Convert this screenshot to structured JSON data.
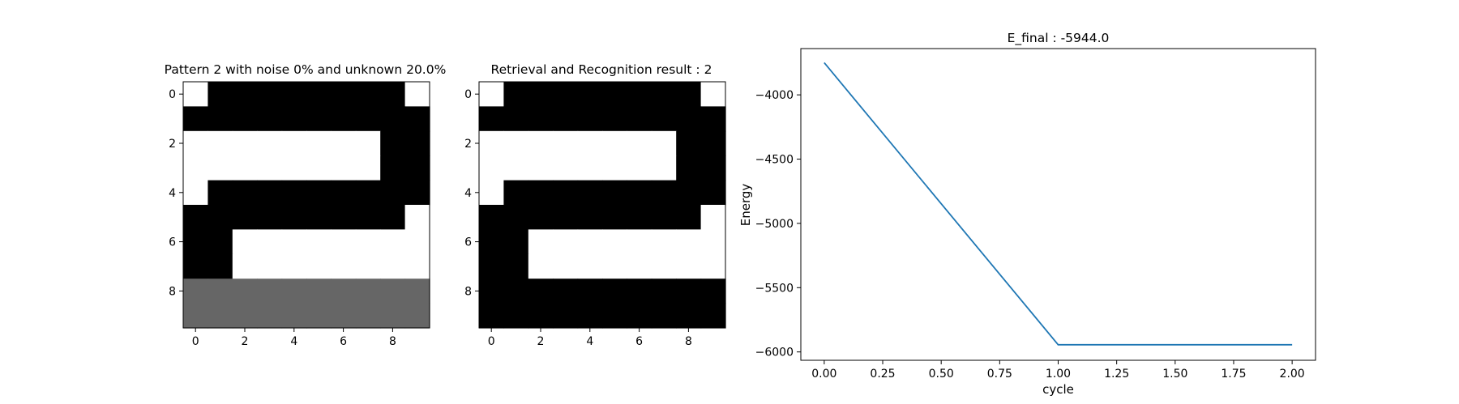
{
  "chart_data": [
    {
      "type": "heatmap",
      "title": "Pattern 2 with noise 0% and unknown 20.0%",
      "xlabel": "",
      "ylabel": "",
      "x_ticks": [
        0,
        2,
        4,
        6,
        8
      ],
      "y_ticks": [
        0,
        2,
        4,
        6,
        8
      ],
      "value_colors": {
        "1": "#000000",
        "-1": "#ffffff",
        "0": "#666666"
      },
      "grid": [
        [
          -1,
          1,
          1,
          1,
          1,
          1,
          1,
          1,
          1,
          -1
        ],
        [
          1,
          1,
          1,
          1,
          1,
          1,
          1,
          1,
          1,
          1
        ],
        [
          -1,
          -1,
          -1,
          -1,
          -1,
          -1,
          -1,
          -1,
          1,
          1
        ],
        [
          -1,
          -1,
          -1,
          -1,
          -1,
          -1,
          -1,
          -1,
          1,
          1
        ],
        [
          -1,
          1,
          1,
          1,
          1,
          1,
          1,
          1,
          1,
          1
        ],
        [
          1,
          1,
          1,
          1,
          1,
          1,
          1,
          1,
          1,
          -1
        ],
        [
          1,
          1,
          -1,
          -1,
          -1,
          -1,
          -1,
          -1,
          -1,
          -1
        ],
        [
          1,
          1,
          -1,
          -1,
          -1,
          -1,
          -1,
          -1,
          -1,
          -1
        ],
        [
          0,
          0,
          0,
          0,
          0,
          0,
          0,
          0,
          0,
          0
        ],
        [
          0,
          0,
          0,
          0,
          0,
          0,
          0,
          0,
          0,
          0
        ]
      ]
    },
    {
      "type": "heatmap",
      "title": "Retrieval and Recognition result : 2",
      "xlabel": "",
      "ylabel": "",
      "x_ticks": [
        0,
        2,
        4,
        6,
        8
      ],
      "y_ticks": [
        0,
        2,
        4,
        6,
        8
      ],
      "value_colors": {
        "1": "#000000",
        "-1": "#ffffff",
        "0": "#666666"
      },
      "grid": [
        [
          -1,
          1,
          1,
          1,
          1,
          1,
          1,
          1,
          1,
          -1
        ],
        [
          1,
          1,
          1,
          1,
          1,
          1,
          1,
          1,
          1,
          1
        ],
        [
          -1,
          -1,
          -1,
          -1,
          -1,
          -1,
          -1,
          -1,
          1,
          1
        ],
        [
          -1,
          -1,
          -1,
          -1,
          -1,
          -1,
          -1,
          -1,
          1,
          1
        ],
        [
          -1,
          1,
          1,
          1,
          1,
          1,
          1,
          1,
          1,
          1
        ],
        [
          1,
          1,
          1,
          1,
          1,
          1,
          1,
          1,
          1,
          -1
        ],
        [
          1,
          1,
          -1,
          -1,
          -1,
          -1,
          -1,
          -1,
          -1,
          -1
        ],
        [
          1,
          1,
          -1,
          -1,
          -1,
          -1,
          -1,
          -1,
          -1,
          -1
        ],
        [
          1,
          1,
          1,
          1,
          1,
          1,
          1,
          1,
          1,
          1
        ],
        [
          1,
          1,
          1,
          1,
          1,
          1,
          1,
          1,
          1,
          1
        ]
      ]
    },
    {
      "type": "line",
      "title": "E_final : -5944.0",
      "xlabel": "cycle",
      "ylabel": "Energy",
      "x": [
        0,
        1,
        2
      ],
      "series": [
        {
          "values": [
            -3750,
            -5944,
            -5944
          ],
          "color": "#1f77b4"
        }
      ],
      "xlim": [
        -0.1,
        2.1
      ],
      "ylim": [
        -6065,
        -3640
      ],
      "x_ticks": [
        0.0,
        0.25,
        0.5,
        0.75,
        1.0,
        1.25,
        1.5,
        1.75,
        2.0
      ],
      "x_tick_labels": [
        "0.00",
        "0.25",
        "0.50",
        "0.75",
        "1.00",
        "1.25",
        "1.50",
        "1.75",
        "2.00"
      ],
      "y_ticks": [
        -6000,
        -5500,
        -5000,
        -4500,
        -4000
      ],
      "y_tick_labels": [
        "−6000",
        "−5500",
        "−5000",
        "−4500",
        "−4000"
      ],
      "grid": false,
      "legend": "none"
    }
  ]
}
